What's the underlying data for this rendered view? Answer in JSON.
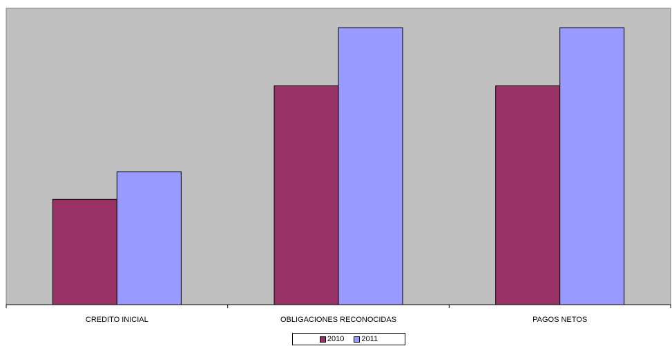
{
  "chart_data": {
    "type": "bar",
    "title": "",
    "xlabel": "",
    "ylabel": "",
    "categories": [
      "CREDITO INICIAL",
      "OBLIGACIONES RECONOCIDAS",
      "PAGOS NETOS"
    ],
    "series": [
      {
        "name": "2010",
        "color": "#993366",
        "values": [
          38,
          79,
          79
        ]
      },
      {
        "name": "2011",
        "color": "#9999ff",
        "values": [
          48,
          100,
          100
        ]
      }
    ],
    "ylim": [
      0,
      107
    ],
    "grid": false,
    "plot_background": "#c0c0c0",
    "legend_position": "bottom"
  }
}
